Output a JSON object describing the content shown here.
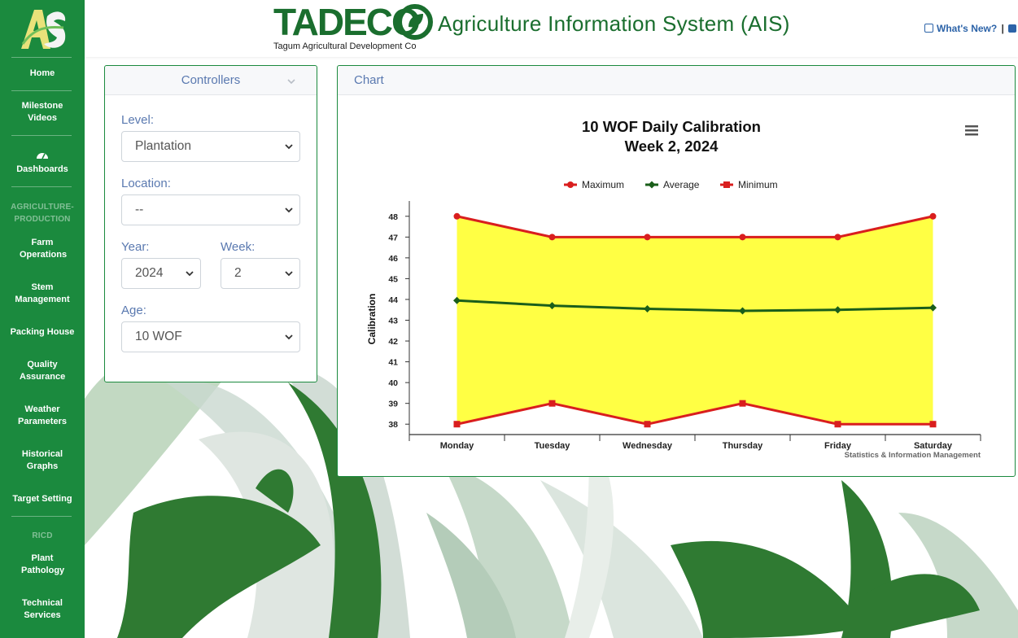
{
  "colors": {
    "sidebar": "#1b8a3e",
    "brand": "#1a6e2e",
    "accent_blue": "#5a79b0",
    "max_series": "#d91e1e",
    "avg_series": "#1a5e1a",
    "min_series": "#d91e1e",
    "range_fill": "#ffff44"
  },
  "sidebar": {
    "logo": "AIS-logo",
    "items": [
      {
        "label": "Home"
      },
      {
        "label": "Milestone Videos"
      },
      {
        "label": "Dashboards",
        "icon": "dashboard-icon"
      },
      {
        "label": "Farm Operations"
      },
      {
        "label": "Stem Management"
      },
      {
        "label": "Packing House"
      },
      {
        "label": "Quality Assurance"
      },
      {
        "label": "Weather Parameters"
      },
      {
        "label": "Historical Graphs"
      },
      {
        "label": "Target Setting"
      },
      {
        "label": "Plant Pathology"
      },
      {
        "label": "Technical Services"
      }
    ],
    "sections": {
      "agri": "AGRICULTURE-PRODUCTION",
      "ricd": "RICD"
    }
  },
  "header": {
    "brand": "TADECO",
    "brand_sub": "Tagum Agricultural Development Co",
    "title": "Agriculture Information System (AIS)",
    "whats_new": "What's New?",
    "separator": "|"
  },
  "controllers": {
    "title": "Controllers",
    "level": {
      "label": "Level:",
      "value": "Plantation"
    },
    "location": {
      "label": "Location:",
      "value": "--"
    },
    "year": {
      "label": "Year:",
      "value": "2024"
    },
    "week": {
      "label": "Week:",
      "value": "2"
    },
    "age": {
      "label": "Age:",
      "value": "10 WOF"
    }
  },
  "chart_panel": {
    "title": "Chart",
    "menu_icon": "hamburger-menu-icon"
  },
  "chart_data": {
    "type": "line",
    "title": "10 WOF Daily Calibration",
    "subtitle": "Week 2, 2024",
    "xlabel": "",
    "ylabel": "Calibration",
    "credits": "Statistics & Information Management",
    "categories": [
      "Monday",
      "Tuesday",
      "Wednesday",
      "Thursday",
      "Friday",
      "Saturday"
    ],
    "ylim": [
      37.5,
      48.5
    ],
    "yticks": [
      38,
      39,
      40,
      41,
      42,
      43,
      44,
      45,
      46,
      47,
      48
    ],
    "legend_position": "top-center",
    "range_fill": "between Maximum and Minimum",
    "series": [
      {
        "name": "Maximum",
        "marker": "circle",
        "values": [
          48,
          47,
          47,
          47,
          47,
          48
        ]
      },
      {
        "name": "Average",
        "marker": "diamond",
        "values": [
          43.95,
          43.7,
          43.55,
          43.45,
          43.5,
          43.6
        ]
      },
      {
        "name": "Minimum",
        "marker": "square",
        "values": [
          38,
          39,
          38,
          39,
          38,
          38
        ]
      }
    ]
  }
}
